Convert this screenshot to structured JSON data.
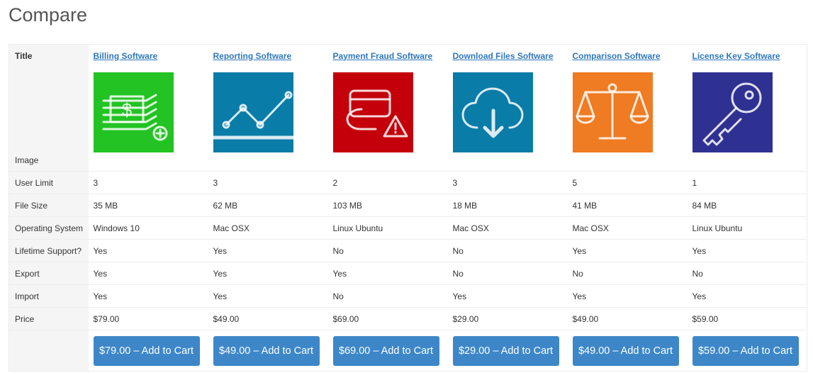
{
  "header": {
    "title": "Compare"
  },
  "table": {
    "title_label": "Title",
    "image_label": "Image",
    "products": [
      "Billing Software",
      "Reporting Software",
      "Payment Fraud Software",
      "Download Files Software",
      "Comparison Software",
      "License Key Software"
    ],
    "rows": [
      {
        "label": "User Limit",
        "cells": [
          "3",
          "3",
          "2",
          "3",
          "5",
          "1"
        ]
      },
      {
        "label": "File Size",
        "cells": [
          "35 MB",
          "62 MB",
          "103 MB",
          "18 MB",
          "41 MB",
          "84 MB"
        ]
      },
      {
        "label": "Operating System",
        "cells": [
          "Windows 10",
          "Mac OSX",
          "Linux Ubuntu",
          "Mac OSX",
          "Mac OSX",
          "Linux Ubuntu"
        ]
      },
      {
        "label": "Lifetime Support?",
        "cells": [
          "Yes",
          "Yes",
          "No",
          "No",
          "Yes",
          "Yes"
        ]
      },
      {
        "label": "Export",
        "cells": [
          "Yes",
          "Yes",
          "Yes",
          "No",
          "No",
          "No"
        ]
      },
      {
        "label": "Import",
        "cells": [
          "Yes",
          "Yes",
          "No",
          "Yes",
          "Yes",
          "Yes"
        ]
      },
      {
        "label": "Price",
        "cells": [
          "$79.00",
          "$49.00",
          "$69.00",
          "$29.00",
          "$49.00",
          "$59.00"
        ]
      }
    ],
    "buttons": [
      "$79.00 – Add to Cart",
      "$49.00 – Add to Cart",
      "$69.00 – Add to Cart",
      "$29.00 – Add to Cart",
      "$49.00 – Add to Cart",
      "$59.00 – Add to Cart"
    ]
  }
}
